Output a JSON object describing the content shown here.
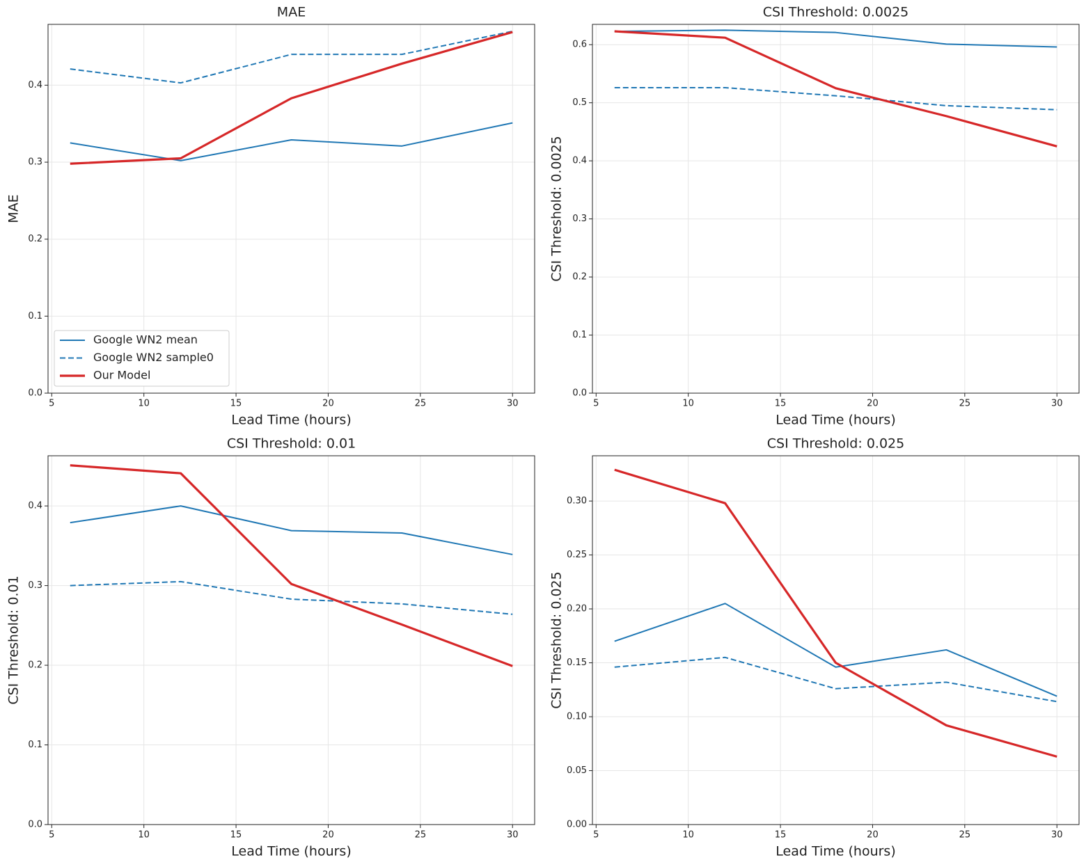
{
  "chart_data": [
    {
      "type": "line",
      "title": "MAE",
      "xlabel": "Lead Time (hours)",
      "ylabel": "MAE",
      "x": [
        6,
        12,
        18,
        24,
        30
      ],
      "series": [
        {
          "name": "Google WN2 mean",
          "color": "#1f77b4",
          "linestyle": "solid",
          "linewidth": 2,
          "values": [
            0.325,
            0.302,
            0.329,
            0.321,
            0.351
          ]
        },
        {
          "name": "Google WN2 sample0",
          "color": "#1f77b4",
          "linestyle": "dashed",
          "linewidth": 2,
          "values": [
            0.421,
            0.403,
            0.44,
            0.44,
            0.47
          ]
        },
        {
          "name": "Our Model",
          "color": "#d62728",
          "linestyle": "solid",
          "linewidth": 3.2,
          "values": [
            0.298,
            0.305,
            0.383,
            0.428,
            0.469
          ]
        }
      ],
      "xlim": [
        4.8,
        31.2
      ],
      "ylim": [
        0,
        0.479
      ],
      "xticks": [
        5,
        10,
        15,
        20,
        25,
        30
      ],
      "yticks": [
        {
          "value": 0,
          "label": "0.0"
        },
        0.1,
        0.2,
        0.3,
        0.4
      ],
      "grid": true,
      "legend": "lower left"
    },
    {
      "type": "line",
      "title": "CSI Threshold: 0.0025",
      "xlabel": "Lead Time (hours)",
      "ylabel": "CSI Threshold: 0.0025",
      "x": [
        6,
        12,
        18,
        24,
        30
      ],
      "series": [
        {
          "name": "Google WN2 mean",
          "color": "#1f77b4",
          "linestyle": "solid",
          "linewidth": 2,
          "values": [
            0.623,
            0.625,
            0.621,
            0.601,
            0.596
          ]
        },
        {
          "name": "Google WN2 sample0",
          "color": "#1f77b4",
          "linestyle": "dashed",
          "linewidth": 2,
          "values": [
            0.526,
            0.526,
            0.512,
            0.495,
            0.488
          ]
        },
        {
          "name": "Our Model",
          "color": "#d62728",
          "linestyle": "solid",
          "linewidth": 3.2,
          "values": [
            0.623,
            0.612,
            0.525,
            0.477,
            0.425
          ]
        }
      ],
      "xlim": [
        4.8,
        31.2
      ],
      "ylim": [
        0,
        0.635
      ],
      "xticks": [
        5,
        10,
        15,
        20,
        25,
        30
      ],
      "yticks": [
        {
          "value": 0,
          "label": "0.0"
        },
        0.1,
        0.2,
        0.3,
        0.4,
        0.5,
        0.6
      ],
      "grid": true
    },
    {
      "type": "line",
      "title": "CSI Threshold: 0.01",
      "xlabel": "Lead Time (hours)",
      "ylabel": "CSI Threshold: 0.01",
      "x": [
        6,
        12,
        18,
        24,
        30
      ],
      "series": [
        {
          "name": "Google WN2 mean",
          "color": "#1f77b4",
          "linestyle": "solid",
          "linewidth": 2,
          "values": [
            0.379,
            0.4,
            0.369,
            0.366,
            0.339
          ]
        },
        {
          "name": "Google WN2 sample0",
          "color": "#1f77b4",
          "linestyle": "dashed",
          "linewidth": 2,
          "values": [
            0.3,
            0.305,
            0.283,
            0.277,
            0.264
          ]
        },
        {
          "name": "Our Model",
          "color": "#d62728",
          "linestyle": "solid",
          "linewidth": 3.2,
          "values": [
            0.451,
            0.441,
            0.302,
            0.251,
            0.199
          ]
        }
      ],
      "xlim": [
        4.8,
        31.2
      ],
      "ylim": [
        0,
        0.463
      ],
      "xticks": [
        5,
        10,
        15,
        20,
        25,
        30
      ],
      "yticks": [
        {
          "value": 0,
          "label": "0.0"
        },
        0.1,
        0.2,
        0.3,
        0.4
      ],
      "grid": true
    },
    {
      "type": "line",
      "title": "CSI Threshold: 0.025",
      "xlabel": "Lead Time (hours)",
      "ylabel": "CSI Threshold: 0.025",
      "x": [
        6,
        12,
        18,
        24,
        30
      ],
      "series": [
        {
          "name": "Google WN2 mean",
          "color": "#1f77b4",
          "linestyle": "solid",
          "linewidth": 2,
          "values": [
            0.17,
            0.205,
            0.146,
            0.162,
            0.119
          ]
        },
        {
          "name": "Google WN2 sample0",
          "color": "#1f77b4",
          "linestyle": "dashed",
          "linewidth": 2,
          "values": [
            0.146,
            0.155,
            0.126,
            0.132,
            0.114
          ]
        },
        {
          "name": "Our Model",
          "color": "#d62728",
          "linestyle": "solid",
          "linewidth": 3.2,
          "values": [
            0.329,
            0.298,
            0.15,
            0.092,
            0.063
          ]
        }
      ],
      "xlim": [
        4.8,
        31.2
      ],
      "ylim": [
        0,
        0.342
      ],
      "xticks": [
        5,
        10,
        15,
        20,
        25,
        30
      ],
      "yticks": [
        {
          "value": 0,
          "label": "0.00"
        },
        0.05,
        {
          "value": 0.1,
          "label": "0.10"
        },
        0.15,
        {
          "value": 0.2,
          "label": "0.20"
        },
        0.25,
        {
          "value": 0.3,
          "label": "0.30"
        }
      ],
      "grid": true
    }
  ]
}
